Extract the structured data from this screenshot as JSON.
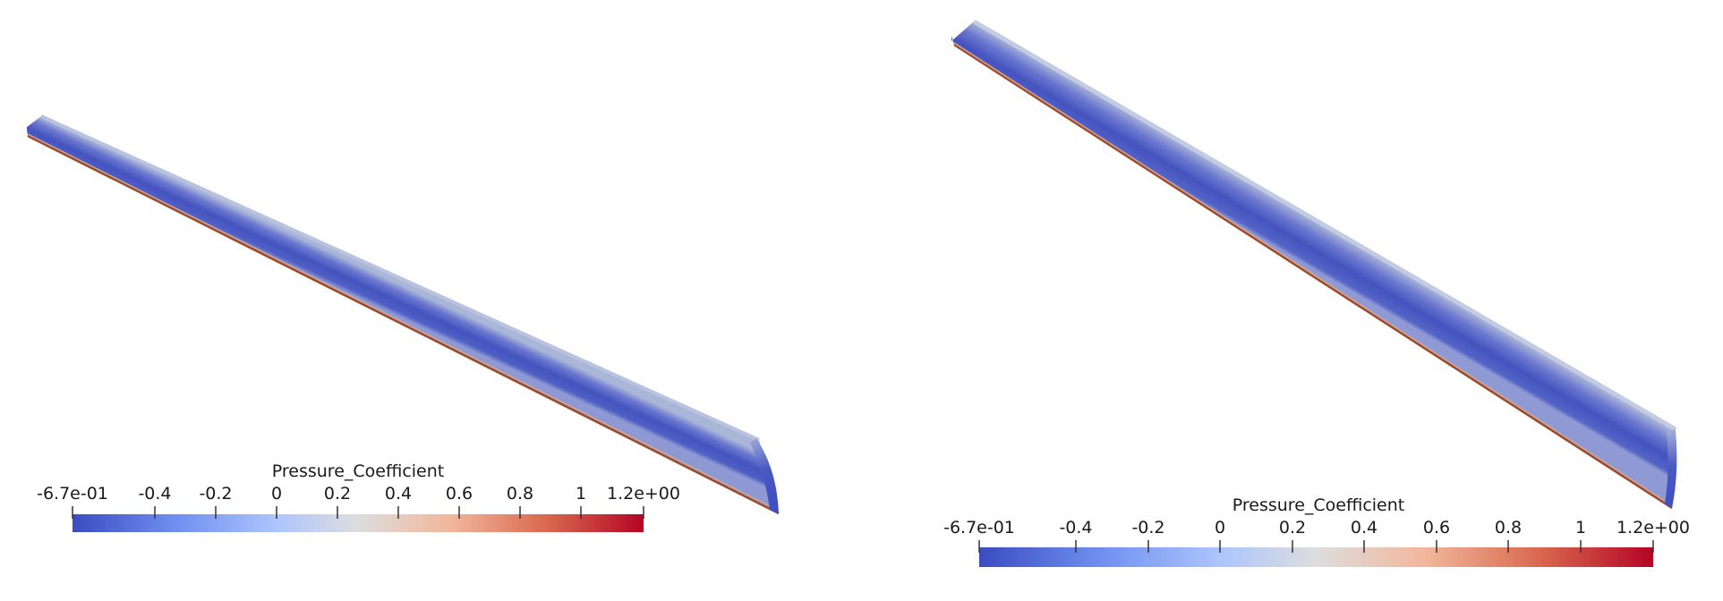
{
  "colormap": {
    "low": "#3b4cc0",
    "mid": "#dddddd",
    "high": "#b40426",
    "stops": [
      "#3b4cc0",
      "#6f8ff0",
      "#aec6fd",
      "#dddddd",
      "#f2b79c",
      "#d9694f",
      "#b40426"
    ]
  },
  "views": [
    {
      "id": "left",
      "legend": {
        "title": "Pressure_Coefficient",
        "ticks": [
          "-6.7e-01",
          "-0.4",
          "-0.2",
          "0",
          "0.2",
          "0.4",
          "0.6",
          "0.8",
          "1",
          "1.2e+00"
        ]
      }
    },
    {
      "id": "right",
      "legend": {
        "title": "Pressure_Coefficient",
        "ticks": [
          "-6.7e-01",
          "-0.4",
          "-0.2",
          "0",
          "0.2",
          "0.4",
          "0.6",
          "0.8",
          "1",
          "1.2e+00"
        ]
      }
    }
  ]
}
